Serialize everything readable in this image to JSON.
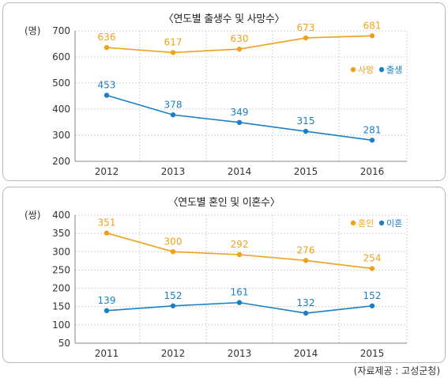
{
  "charts": [
    {
      "title": "〈연도별 출생수 및 사망수〉",
      "chart_data": {
        "type": "line",
        "title": "〈연도별 출생수 및 사망수〉",
        "ylabel": "(명)",
        "categories": [
          "2012",
          "2013",
          "2014",
          "2015",
          "2016"
        ],
        "ylim": [
          200,
          700
        ],
        "yticks": [
          "200",
          "300",
          "400",
          "500",
          "600",
          "700"
        ],
        "legend_position": "right",
        "grid": true,
        "series": [
          {
            "name": "사망",
            "color": "#f0a11c",
            "values": [
              636,
              617,
              630,
              673,
              681
            ]
          },
          {
            "name": "출생",
            "color": "#1a7fc4",
            "values": [
              453,
              378,
              349,
              315,
              281
            ]
          }
        ]
      }
    },
    {
      "title": "〈연도별 혼인 및 이혼수〉",
      "chart_data": {
        "type": "line",
        "title": "〈연도별 혼인 및 이혼수〉",
        "ylabel": "(쌍)",
        "categories": [
          "2011",
          "2012",
          "2013",
          "2014",
          "2015"
        ],
        "ylim": [
          50,
          400
        ],
        "yticks": [
          "50",
          "100",
          "150",
          "200",
          "250",
          "300",
          "350",
          "400"
        ],
        "legend_position": "top-right",
        "grid": true,
        "series": [
          {
            "name": "혼인",
            "color": "#f0a11c",
            "values": [
              351,
              300,
              292,
              276,
              254
            ]
          },
          {
            "name": "이혼",
            "color": "#1a7fc4",
            "values": [
              139,
              152,
              161,
              132,
              152
            ]
          }
        ]
      }
    }
  ],
  "source": "(자료제공 : 고성군청)"
}
